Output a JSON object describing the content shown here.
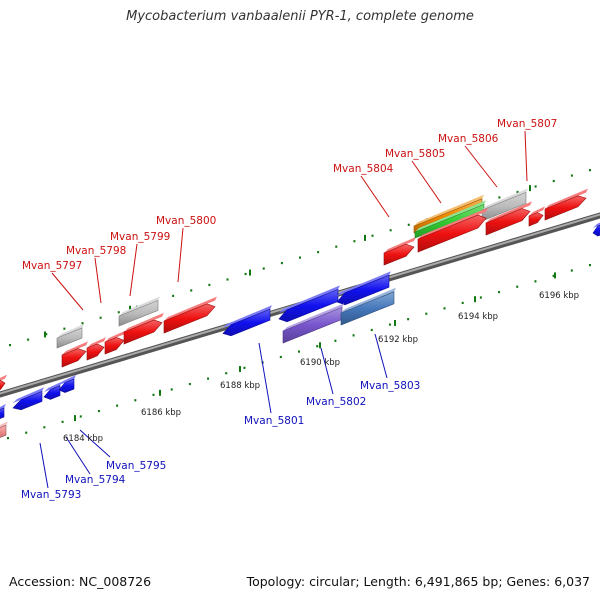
{
  "title": "Mycobacterium vanbaalenii PYR-1, complete genome",
  "footer": {
    "accession_label": "Accession:",
    "accession": "NC_008726",
    "topology_label": "Topology:",
    "topology": "circular",
    "length_label": "Length:",
    "length": "6,491,865 bp",
    "genes_label": "Genes:",
    "genes": "6,037"
  },
  "colors": {
    "forward_gene": "#ee1111",
    "reverse_gene": "#1111ee",
    "pseudo_gene": "#bbbbbb",
    "orange_feature": "#ee8800",
    "green_feature": "#33cc33",
    "purple_feature": "#7755cc",
    "steelblue_feature": "#4477bb",
    "pink_feature": "#ee8888",
    "forward_label": "#cc1111",
    "reverse_label": "#1111bb",
    "backbone": "#888888",
    "tick": "#117711"
  },
  "scale_ticks": [
    {
      "label": "6184 kbp"
    },
    {
      "label": "6186 kbp"
    },
    {
      "label": "6188 kbp"
    },
    {
      "label": "6190 kbp"
    },
    {
      "label": "6192 kbp"
    },
    {
      "label": "6194 kbp"
    },
    {
      "label": "6196 kbp"
    }
  ],
  "gene_labels": [
    {
      "name": "Mvan_5793",
      "strand": "reverse"
    },
    {
      "name": "Mvan_5794",
      "strand": "reverse"
    },
    {
      "name": "Mvan_5795",
      "strand": "reverse"
    },
    {
      "name": "Mvan_5797",
      "strand": "forward"
    },
    {
      "name": "Mvan_5798",
      "strand": "forward"
    },
    {
      "name": "Mvan_5799",
      "strand": "forward"
    },
    {
      "name": "Mvan_5800",
      "strand": "forward"
    },
    {
      "name": "Mvan_5801",
      "strand": "reverse"
    },
    {
      "name": "Mvan_5802",
      "strand": "reverse"
    },
    {
      "name": "Mvan_5803",
      "strand": "reverse"
    },
    {
      "name": "Mvan_5804",
      "strand": "forward"
    },
    {
      "name": "Mvan_5805",
      "strand": "forward"
    },
    {
      "name": "Mvan_5806",
      "strand": "forward"
    },
    {
      "name": "Mvan_5807",
      "strand": "forward"
    }
  ]
}
